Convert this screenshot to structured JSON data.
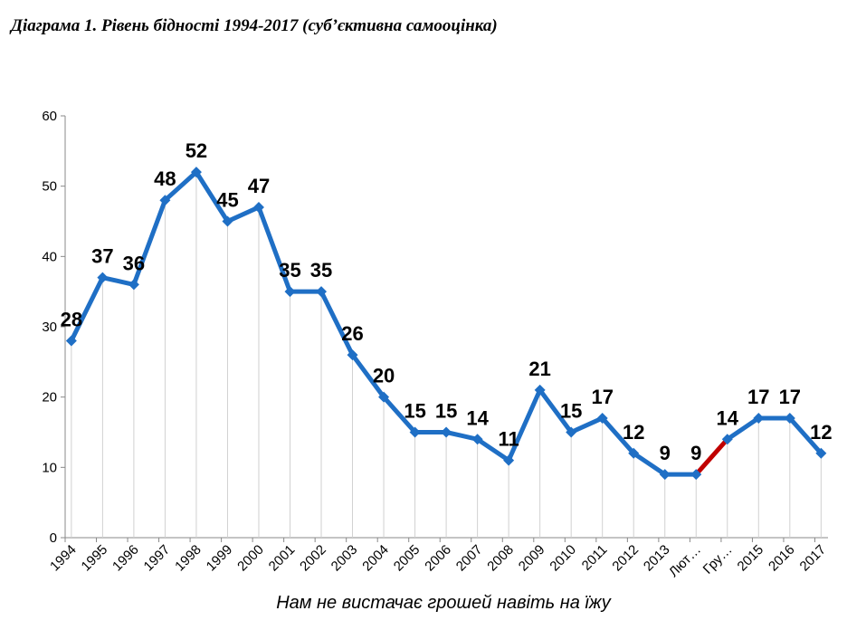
{
  "chart_data": {
    "type": "line",
    "title": "Діаграма 1. Рівень бідності 1994-2017 (суб’єктивна самооцінка)",
    "xlabel": "Нам не вистачає грошей навіть на їжу",
    "ylabel": "",
    "ylim": [
      0,
      60
    ],
    "yticks": [
      0,
      10,
      20,
      30,
      40,
      50,
      60
    ],
    "grid": "vertical drop lines from each point",
    "legend": "none",
    "categories": [
      "1994",
      "1995",
      "1996",
      "1997",
      "1998",
      "1999",
      "2000",
      "2001",
      "2002",
      "2003",
      "2004",
      "2005",
      "2006",
      "2007",
      "2008",
      "2009",
      "2010",
      "2011",
      "2012",
      "2013",
      "Лют…",
      "Гру…",
      "2015",
      "2016",
      "2017"
    ],
    "series": [
      {
        "values": [
          28,
          37,
          36,
          48,
          52,
          45,
          47,
          35,
          35,
          26,
          20,
          15,
          15,
          14,
          11,
          21,
          15,
          17,
          12,
          9,
          9,
          14,
          17,
          17,
          12
        ]
      }
    ],
    "highlight_segment": {
      "from": "Лют…",
      "to": "Гру…",
      "color": "#c00000"
    },
    "colors": {
      "line": "#1f6fc5",
      "highlight": "#c00000"
    }
  }
}
